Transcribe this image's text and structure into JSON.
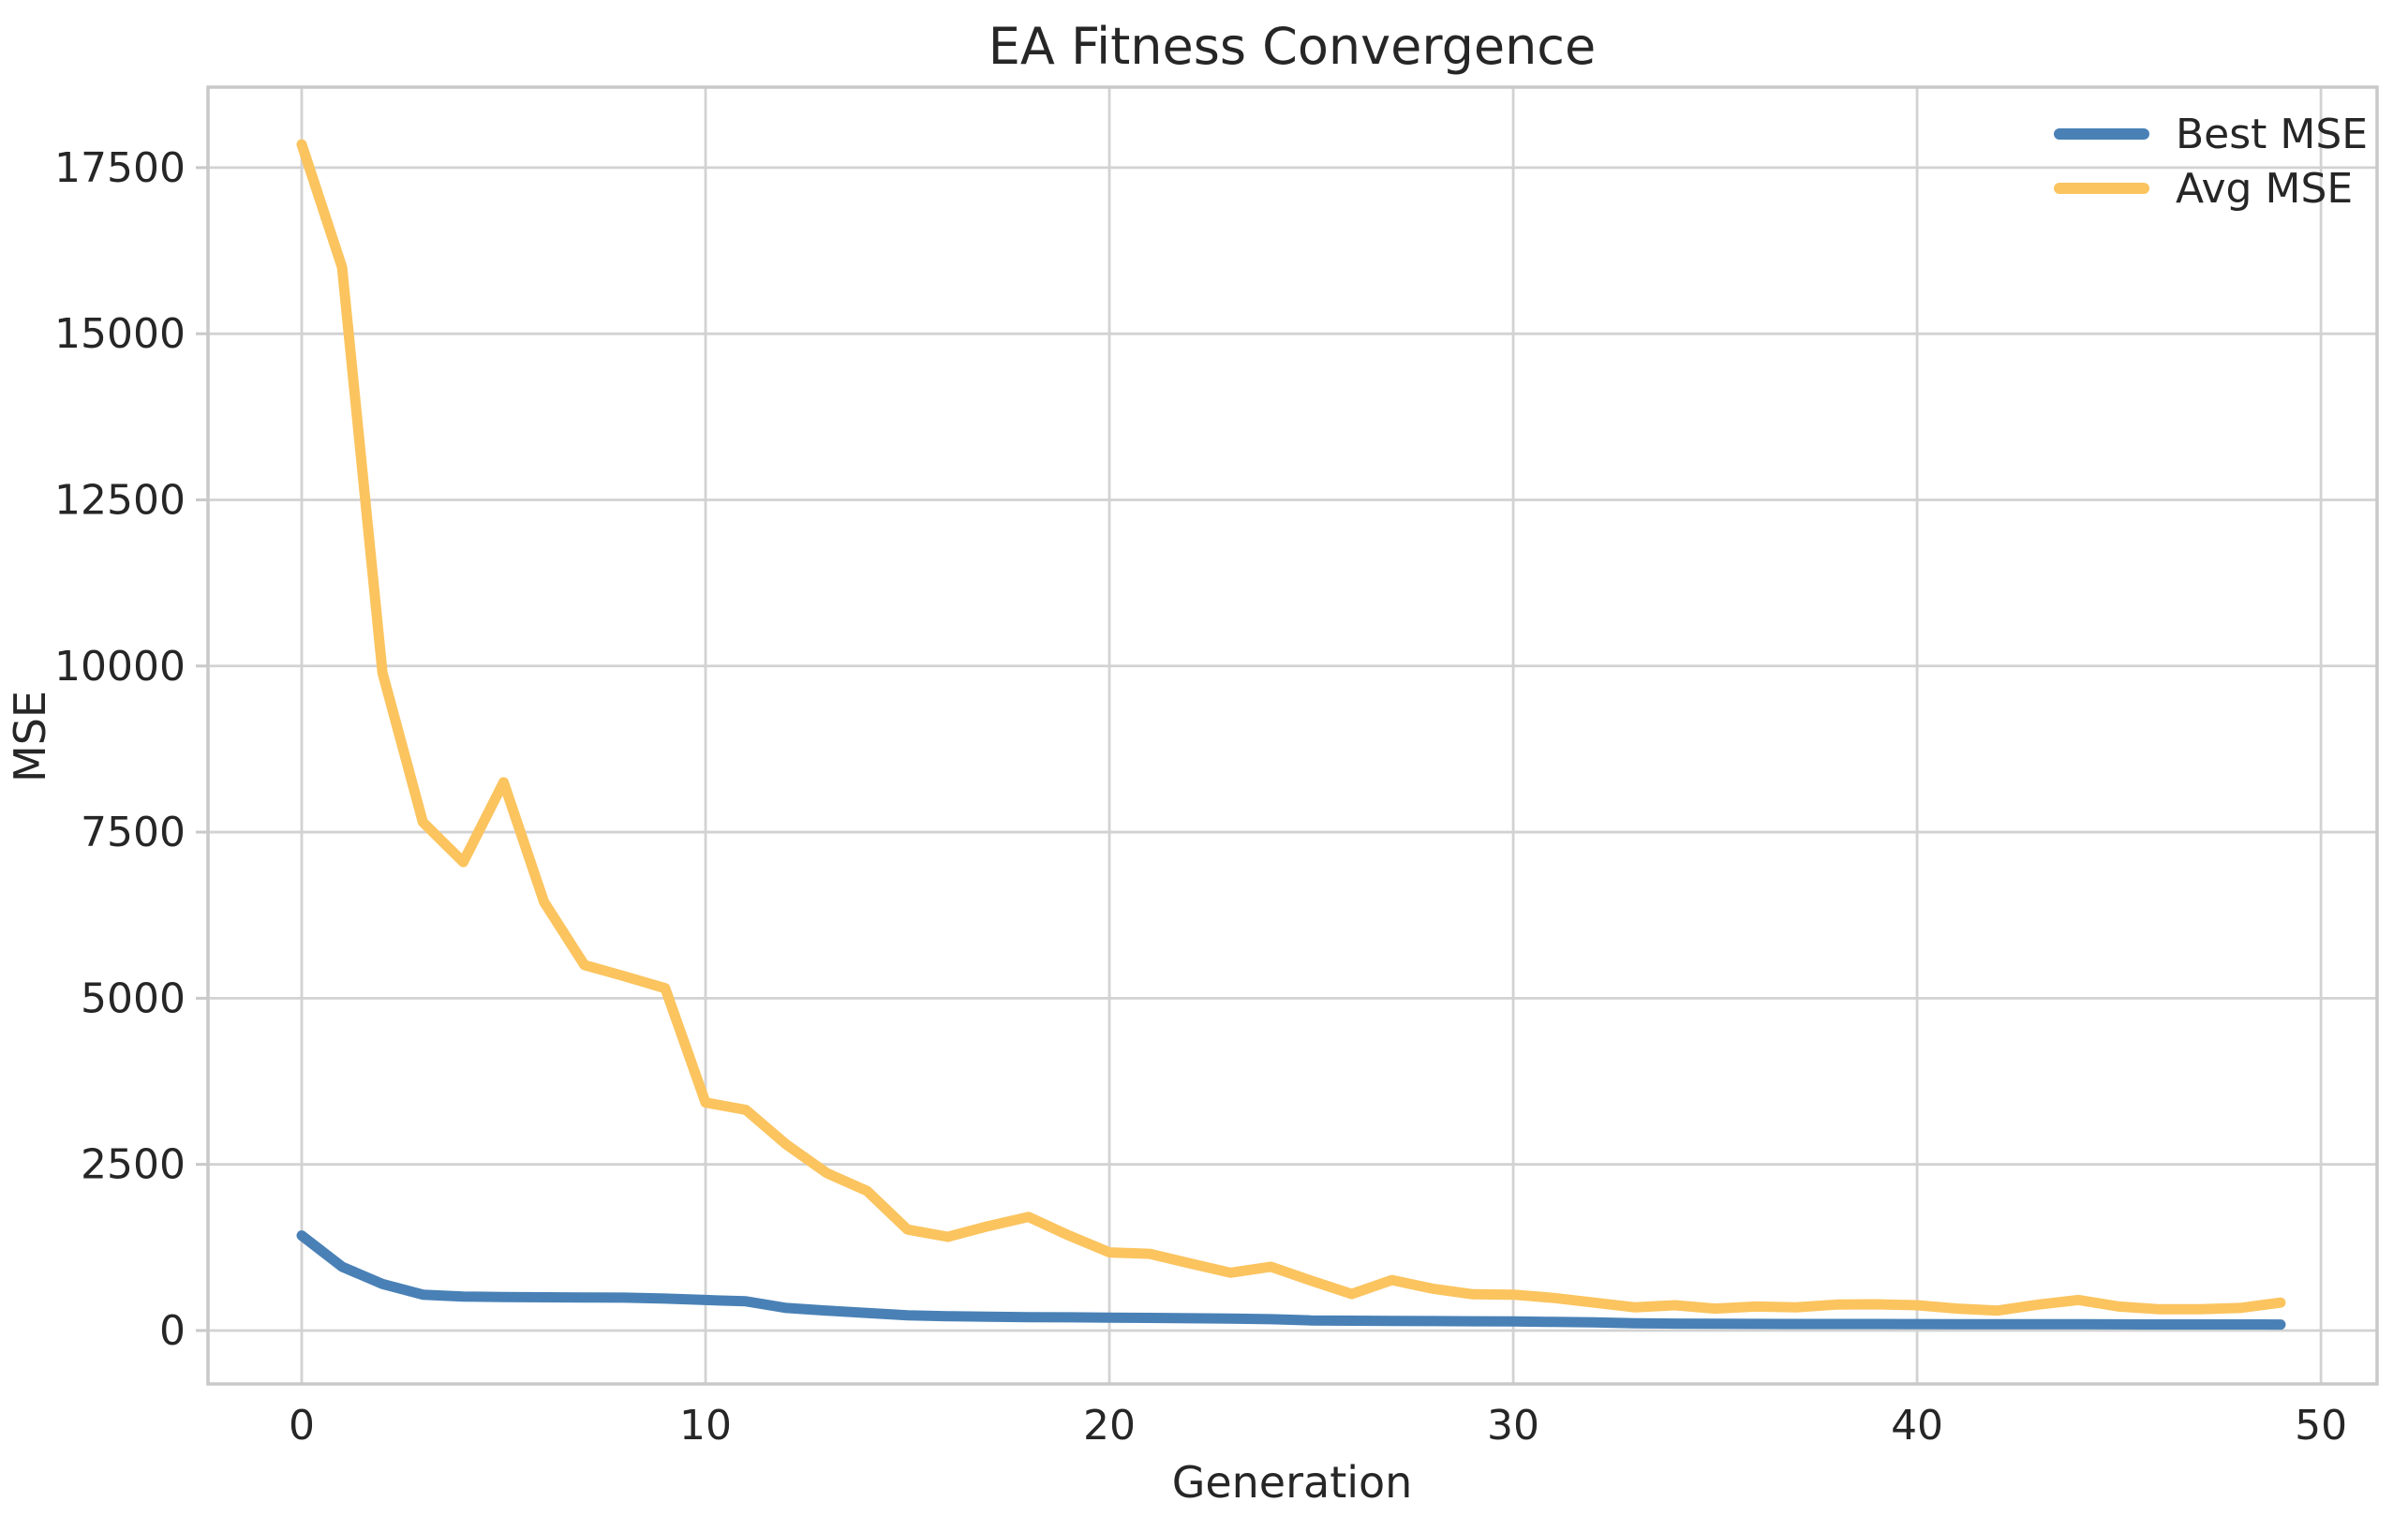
{
  "title": "EA Fitness Convergence",
  "axes": {
    "xlabel": "Generation",
    "ylabel": "MSE"
  },
  "chart_data": {
    "type": "line",
    "title": "EA Fitness Convergence",
    "xlabel": "Generation",
    "ylabel": "MSE",
    "x": [
      0,
      1,
      2,
      3,
      4,
      5,
      6,
      7,
      8,
      9,
      10,
      11,
      12,
      13,
      14,
      15,
      16,
      17,
      18,
      19,
      20,
      21,
      22,
      23,
      24,
      25,
      26,
      27,
      28,
      29,
      30,
      31,
      32,
      33,
      34,
      35,
      36,
      37,
      38,
      39,
      40,
      41,
      42,
      43,
      44,
      45,
      46,
      47,
      48,
      49
    ],
    "series": [
      {
        "name": "Best MSE",
        "color": "#4981b6",
        "values": [
          1430,
          960,
          700,
          540,
          510,
          505,
          500,
          498,
          495,
          480,
          460,
          440,
          340,
          300,
          265,
          230,
          215,
          208,
          202,
          198,
          195,
          190,
          185,
          180,
          170,
          152,
          148,
          145,
          142,
          139,
          136,
          130,
          122,
          108,
          104,
          102,
          100,
          99,
          98,
          98,
          97,
          96,
          95,
          95,
          94,
          93,
          92,
          92,
          91,
          90
        ]
      },
      {
        "name": "Avg MSE",
        "color": "#fbc45f",
        "values": [
          17850,
          16000,
          9900,
          7650,
          7050,
          8250,
          6450,
          5500,
          5330,
          5150,
          3430,
          3320,
          2800,
          2370,
          2100,
          1520,
          1410,
          1570,
          1710,
          1430,
          1175,
          1155,
          1010,
          870,
          960,
          750,
          550,
          760,
          630,
          545,
          540,
          490,
          420,
          350,
          380,
          330,
          360,
          350,
          390,
          395,
          380,
          330,
          300,
          390,
          460,
          360,
          320,
          320,
          340,
          420
        ]
      }
    ],
    "xticks": [
      0,
      10,
      20,
      30,
      40,
      50
    ],
    "yticks": [
      0,
      2500,
      5000,
      7500,
      10000,
      12500,
      15000,
      17500
    ],
    "xlim": [
      -2.32,
      51.39
    ],
    "ylim": [
      -804,
      18711
    ],
    "grid": true,
    "legend_position": "upper right",
    "grid_color": "#d2d2d2",
    "spine_color": "#c9c9c9",
    "text_color": "#262626",
    "background": "#ffffff"
  }
}
